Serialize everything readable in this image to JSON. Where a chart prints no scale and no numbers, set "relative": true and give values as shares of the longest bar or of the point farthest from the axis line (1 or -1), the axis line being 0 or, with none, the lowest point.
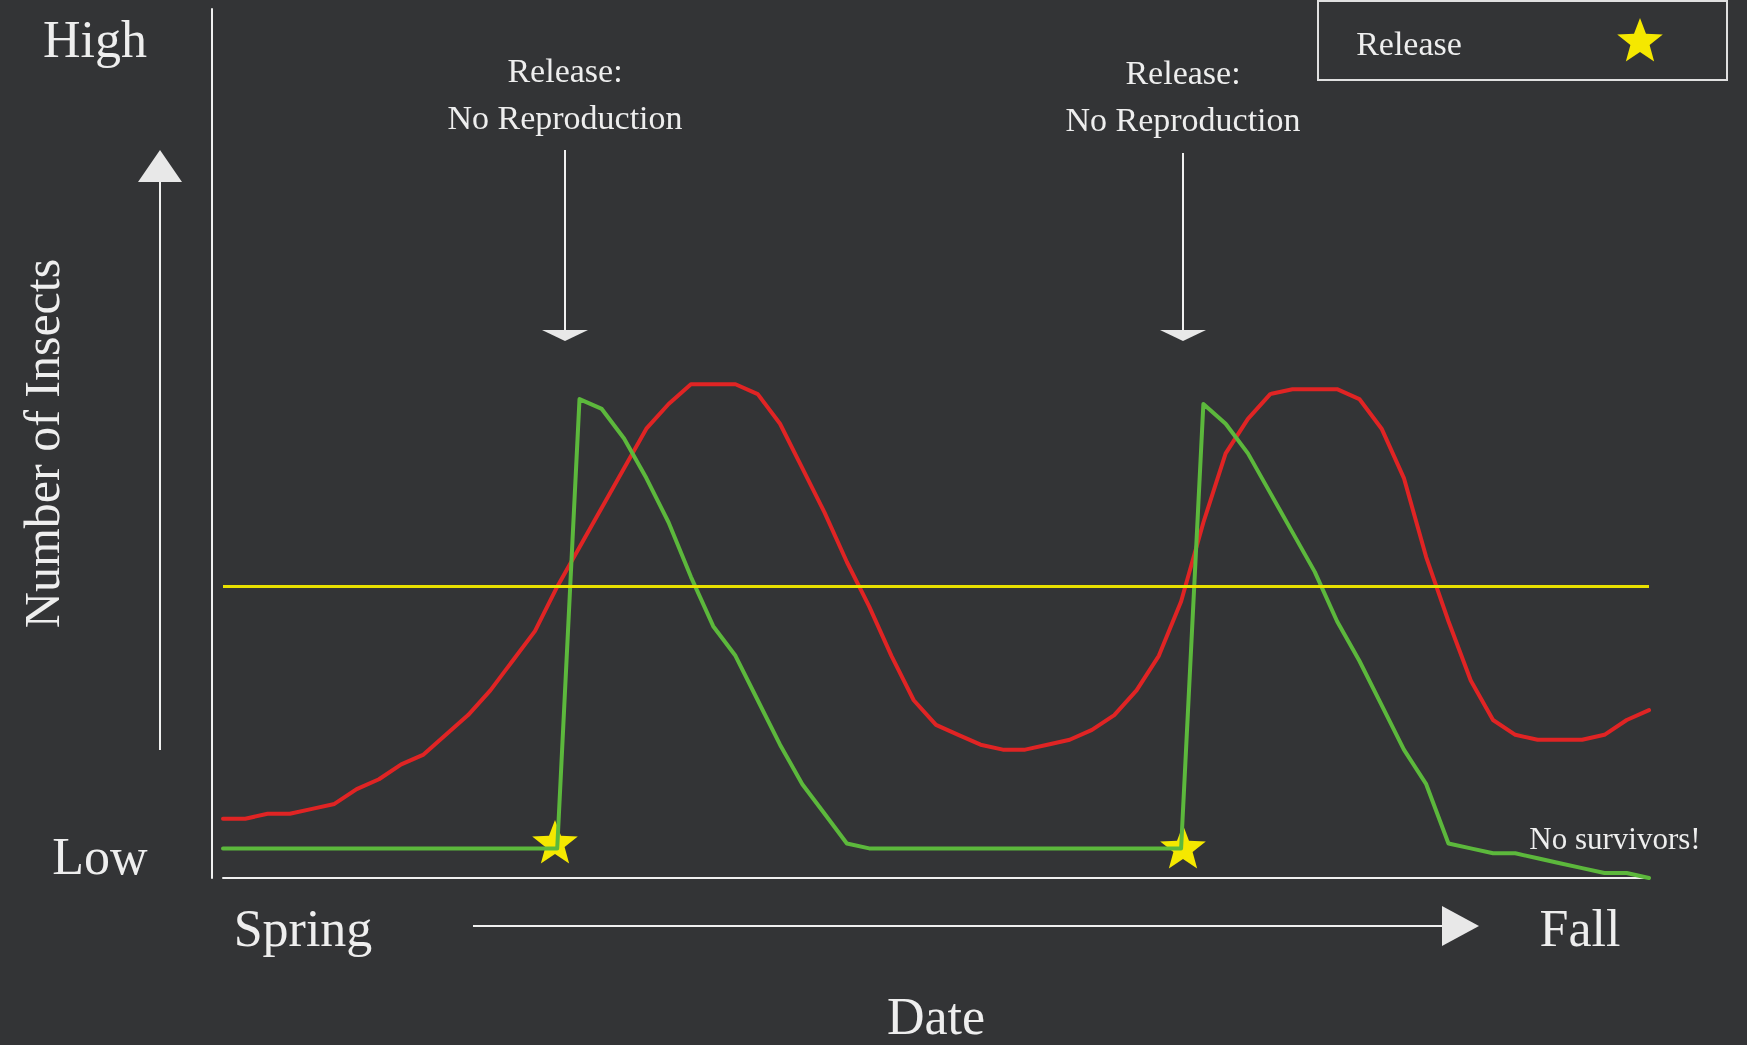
{
  "chart_data": {
    "type": "line",
    "relative": true,
    "xlabel": "Date",
    "ylabel": "Number of Insects",
    "annotations": [
      "High",
      "Low",
      "Spring",
      "Fall",
      "Release:\nNo Reproduction",
      "Release:\nNo Reproduction",
      "No survivors!",
      "Release"
    ],
    "categories": [
      null,
      null,
      null,
      null,
      null,
      null,
      null,
      null,
      null,
      null,
      null,
      null,
      null,
      null,
      null,
      null,
      null,
      null,
      null,
      null,
      null,
      null,
      null,
      null,
      null,
      null,
      null,
      null,
      null,
      null,
      null,
      null,
      null,
      null,
      null,
      null,
      null,
      null,
      null,
      null,
      null,
      null,
      null,
      null,
      null,
      null,
      null,
      null,
      null,
      null,
      null,
      null,
      null,
      null,
      null,
      null,
      null,
      null,
      null,
      null,
      null,
      null,
      null,
      null,
      null
    ],
    "series": [
      {
        "color": "#e02424",
        "values": [
          0.12,
          0.12,
          0.13,
          0.13,
          0.14,
          0.15,
          0.18,
          0.2,
          0.23,
          0.25,
          0.29,
          0.33,
          0.38,
          0.44,
          0.5,
          0.59,
          0.67,
          0.75,
          0.83,
          0.91,
          0.96,
          1,
          1,
          1,
          0.98,
          0.92,
          0.83,
          0.74,
          0.64,
          0.55,
          0.45,
          0.36,
          0.31,
          0.29,
          0.27,
          0.26,
          0.26,
          0.27,
          0.28,
          0.3,
          0.33,
          0.38,
          0.45,
          0.56,
          0.72,
          0.86,
          0.93,
          0.98,
          0.99,
          0.99,
          0.99,
          0.97,
          0.91,
          0.81,
          0.65,
          0.52,
          0.4,
          0.32,
          0.29,
          0.28,
          0.28,
          0.28,
          0.29,
          0.32,
          0.34
        ]
      },
      {
        "color": "#5cb83c",
        "values": [
          0.06,
          0.06,
          0.06,
          0.06,
          0.06,
          0.06,
          0.06,
          0.06,
          0.06,
          0.06,
          0.06,
          0.06,
          0.06,
          0.06,
          0.06,
          0.06,
          0.97,
          0.95,
          0.89,
          0.81,
          0.72,
          0.61,
          0.51,
          0.45,
          0.36,
          0.27,
          0.19,
          0.13,
          0.07,
          0.06,
          0.06,
          0.06,
          0.06,
          0.06,
          0.06,
          0.06,
          0.06,
          0.06,
          0.06,
          0.06,
          0.06,
          0.06,
          0.06,
          0.06,
          0.96,
          0.92,
          0.86,
          0.78,
          0.7,
          0.62,
          0.52,
          0.44,
          0.35,
          0.26,
          0.19,
          0.07,
          0.06,
          0.05,
          0.05,
          0.04,
          0.03,
          0.02,
          0.01,
          0.01,
          0
        ]
      }
    ],
    "ref_lines": [
      {
        "axis": "y",
        "value": 0.59,
        "color": "#e8e000"
      }
    ],
    "marker": "none",
    "line_style": "solid",
    "grid": false,
    "tick_labels": false
  }
}
